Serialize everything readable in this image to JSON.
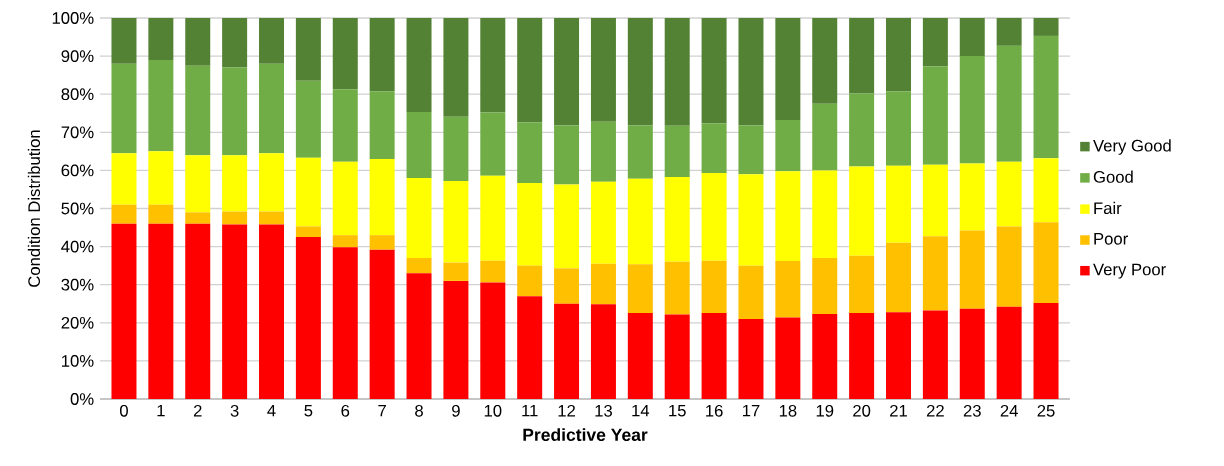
{
  "chart_data": {
    "type": "bar",
    "stacked": true,
    "xlabel": "Predictive Year",
    "ylabel": "Condition Distribution",
    "categories": [
      "0",
      "1",
      "2",
      "3",
      "4",
      "5",
      "6",
      "7",
      "8",
      "9",
      "10",
      "11",
      "12",
      "13",
      "14",
      "15",
      "16",
      "17",
      "18",
      "19",
      "20",
      "21",
      "22",
      "23",
      "24",
      "25"
    ],
    "series": [
      {
        "name": "Very Poor",
        "color": "#ff0000",
        "values": [
          46,
          46,
          46,
          45.8,
          45.8,
          42.5,
          39.8,
          39.2,
          33,
          31,
          30.6,
          27,
          25,
          24.9,
          22.6,
          22.2,
          22.6,
          21,
          21.4,
          22.3,
          22.6,
          22.8,
          23.2,
          23.7,
          24.2,
          25.2
        ]
      },
      {
        "name": "Poor",
        "color": "#ffc000",
        "values": [
          5,
          5,
          3,
          3.4,
          3.4,
          2.8,
          3.2,
          3.8,
          4,
          4.8,
          5.7,
          8,
          9.3,
          10.6,
          12.8,
          13.8,
          13.7,
          14,
          14.8,
          14.7,
          15,
          18.2,
          19.5,
          20.5,
          21.1,
          21.2
        ]
      },
      {
        "name": "Fair",
        "color": "#ffff00",
        "values": [
          13.5,
          14,
          15,
          14.8,
          15.3,
          18,
          19.3,
          20,
          21,
          21.4,
          22.3,
          21.7,
          22,
          21.5,
          22.4,
          22.3,
          23,
          24,
          23.6,
          23,
          23.4,
          20.2,
          18.8,
          17.6,
          17,
          16.8
        ]
      },
      {
        "name": "Good",
        "color": "#70ad47",
        "values": [
          23.5,
          24,
          23.5,
          23,
          23.5,
          20.2,
          19,
          17.8,
          17.3,
          16.9,
          16.6,
          15.9,
          15.5,
          15.8,
          14,
          13.4,
          13,
          12.8,
          13.4,
          17.5,
          19.2,
          19.6,
          25.8,
          28.2,
          30.4,
          32.1
        ]
      },
      {
        "name": "Very Good",
        "color": "#548235",
        "values": [
          12,
          11,
          12.5,
          13,
          12,
          16.5,
          18.7,
          19.2,
          24.7,
          25.9,
          24.8,
          27.4,
          28.2,
          27.2,
          28.2,
          28.3,
          27.7,
          28.2,
          26.8,
          22.5,
          19.8,
          19.2,
          12.7,
          10,
          7.3,
          4.7
        ]
      }
    ],
    "ylim": [
      0,
      100
    ],
    "yticks": [
      {
        "value": 0,
        "label": "0%"
      },
      {
        "value": 10,
        "label": "10%"
      },
      {
        "value": 20,
        "label": "20%"
      },
      {
        "value": 30,
        "label": "30%"
      },
      {
        "value": 40,
        "label": "40%"
      },
      {
        "value": 50,
        "label": "50%"
      },
      {
        "value": 60,
        "label": "60%"
      },
      {
        "value": 70,
        "label": "70%"
      },
      {
        "value": 80,
        "label": "80%"
      },
      {
        "value": 90,
        "label": "90%"
      },
      {
        "value": 100,
        "label": "100%"
      }
    ],
    "grid": "y",
    "legend": "right"
  }
}
